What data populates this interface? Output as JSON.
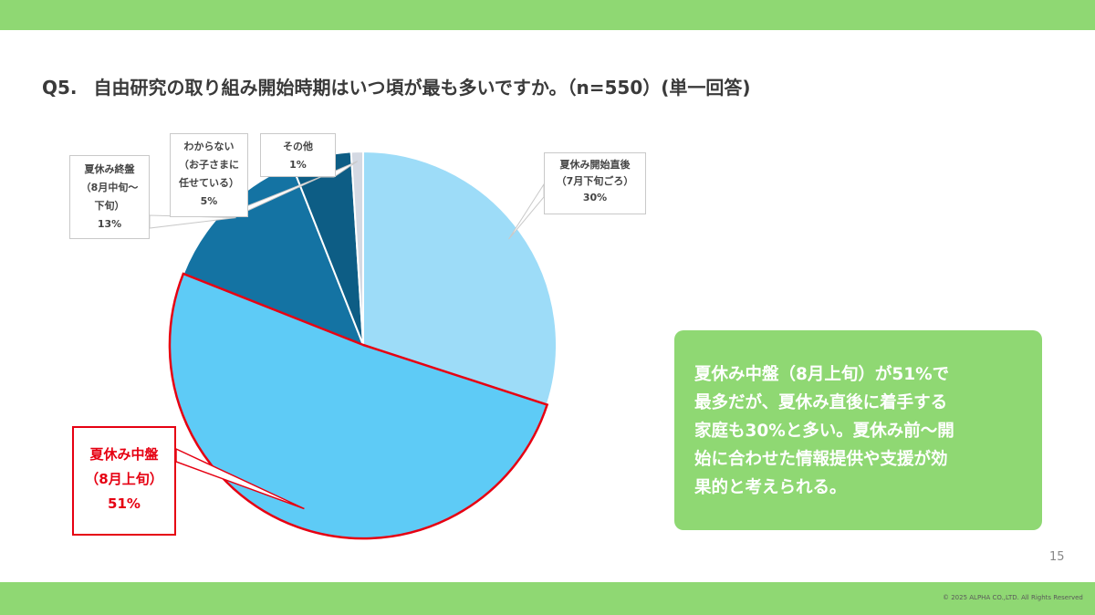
{
  "title": {
    "number": "Q5.",
    "text": "自由研究の取り組み開始時期はいつ頃が最も多いですか。（n=550）(単一回答)"
  },
  "chart_data": {
    "type": "pie",
    "title": "",
    "slices": [
      {
        "label": [
          "夏休み開始直後",
          "（7月下旬ごろ）"
        ],
        "value": 30,
        "value_label": "30%",
        "color": "#9ddcf8"
      },
      {
        "label": [
          "夏休み中盤",
          "（8月上旬）"
        ],
        "value": 51,
        "value_label": "51%",
        "color": "#5ecbf6",
        "highlighted": true
      },
      {
        "label": [
          "夏休み終盤",
          "（8月中旬～",
          "下旬）"
        ],
        "value": 13,
        "value_label": "13%",
        "color": "#1473a3"
      },
      {
        "label": [
          "わからない",
          "（お子さまに",
          "任せている）"
        ],
        "value": 5,
        "value_label": "5%",
        "color": "#0d5d85"
      },
      {
        "label": [
          "その他"
        ],
        "value": 1,
        "value_label": "1%",
        "color": "#d4d9e3"
      }
    ]
  },
  "summary": {
    "lines": [
      "夏休み中盤（8月上旬）が51%で",
      "最多だが、夏休み直後に着手する",
      "家庭も30%と多い。夏休み前～開",
      "始に合わせた情報提供や支援が効",
      "果的と考えられる。"
    ]
  },
  "footer": {
    "page_number": "15",
    "copyright": "© 2025 ALPHA CO.,LTD. All Rights Reserved"
  },
  "colors": {
    "band": "#8fd873",
    "summary_box": "#8fd873",
    "highlight": "#e60012"
  }
}
